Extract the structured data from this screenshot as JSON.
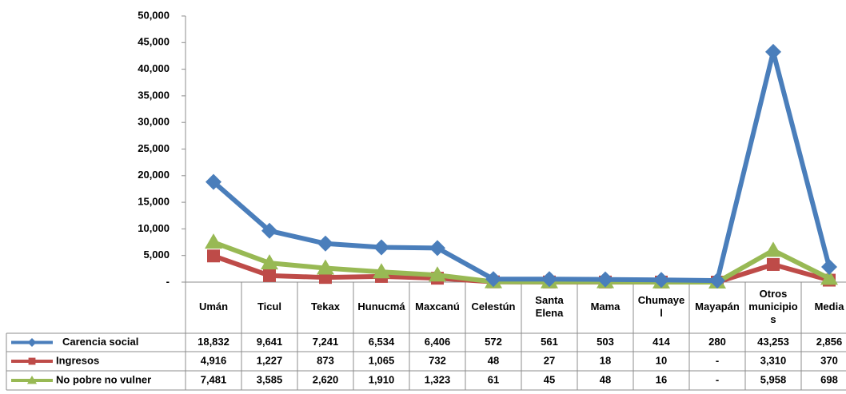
{
  "chart_data": {
    "type": "line",
    "categories": [
      "Umán",
      "Ticul",
      "Tekax",
      "Hunucmá",
      "Maxcanú",
      "Celestún",
      "Santa Elena",
      "Mama",
      "Chumayel",
      "Mayapán",
      "Otros municipios",
      "Media"
    ],
    "series": [
      {
        "name": "Carencia social",
        "color": "#4a7ebb",
        "marker": "diamond",
        "values": [
          18832,
          9641,
          7241,
          6534,
          6406,
          572,
          561,
          503,
          414,
          280,
          43253,
          2856
        ],
        "value_labels": [
          "18,832",
          "9,641",
          "7,241",
          "6,534",
          "6,406",
          "572",
          "561",
          "503",
          "414",
          "280",
          "43,253",
          "2,856"
        ]
      },
      {
        "name": "Ingresos",
        "color": "#be4b48",
        "marker": "square",
        "values": [
          4916,
          1227,
          873,
          1065,
          732,
          48,
          27,
          18,
          10,
          0,
          3310,
          370
        ],
        "value_labels": [
          "4,916",
          "1,227",
          "873",
          "1,065",
          "732",
          "48",
          "27",
          "18",
          "10",
          "-",
          "3,310",
          "370"
        ]
      },
      {
        "name": "No pobre  no vulner",
        "color": "#98b954",
        "marker": "triangle",
        "values": [
          7481,
          3585,
          2620,
          1910,
          1323,
          61,
          45,
          48,
          16,
          0,
          5958,
          698
        ],
        "value_labels": [
          "7,481",
          "3,585",
          "2,620",
          "1,910",
          "1,323",
          "61",
          "45",
          "48",
          "16",
          "-",
          "5,958",
          "698"
        ]
      }
    ],
    "ylim": [
      0,
      50000
    ],
    "yticks": [
      {
        "value": 0,
        "label": "-"
      },
      {
        "value": 5000,
        "label": "5,000"
      },
      {
        "value": 10000,
        "label": "10,000"
      },
      {
        "value": 15000,
        "label": "15,000"
      },
      {
        "value": 20000,
        "label": "20,000"
      },
      {
        "value": 25000,
        "label": "25,000"
      },
      {
        "value": 30000,
        "label": "30,000"
      },
      {
        "value": 35000,
        "label": "35,000"
      },
      {
        "value": 40000,
        "label": "40,000"
      },
      {
        "value": 45000,
        "label": "45,000"
      },
      {
        "value": 50000,
        "label": "50,000"
      }
    ],
    "grid": false
  }
}
